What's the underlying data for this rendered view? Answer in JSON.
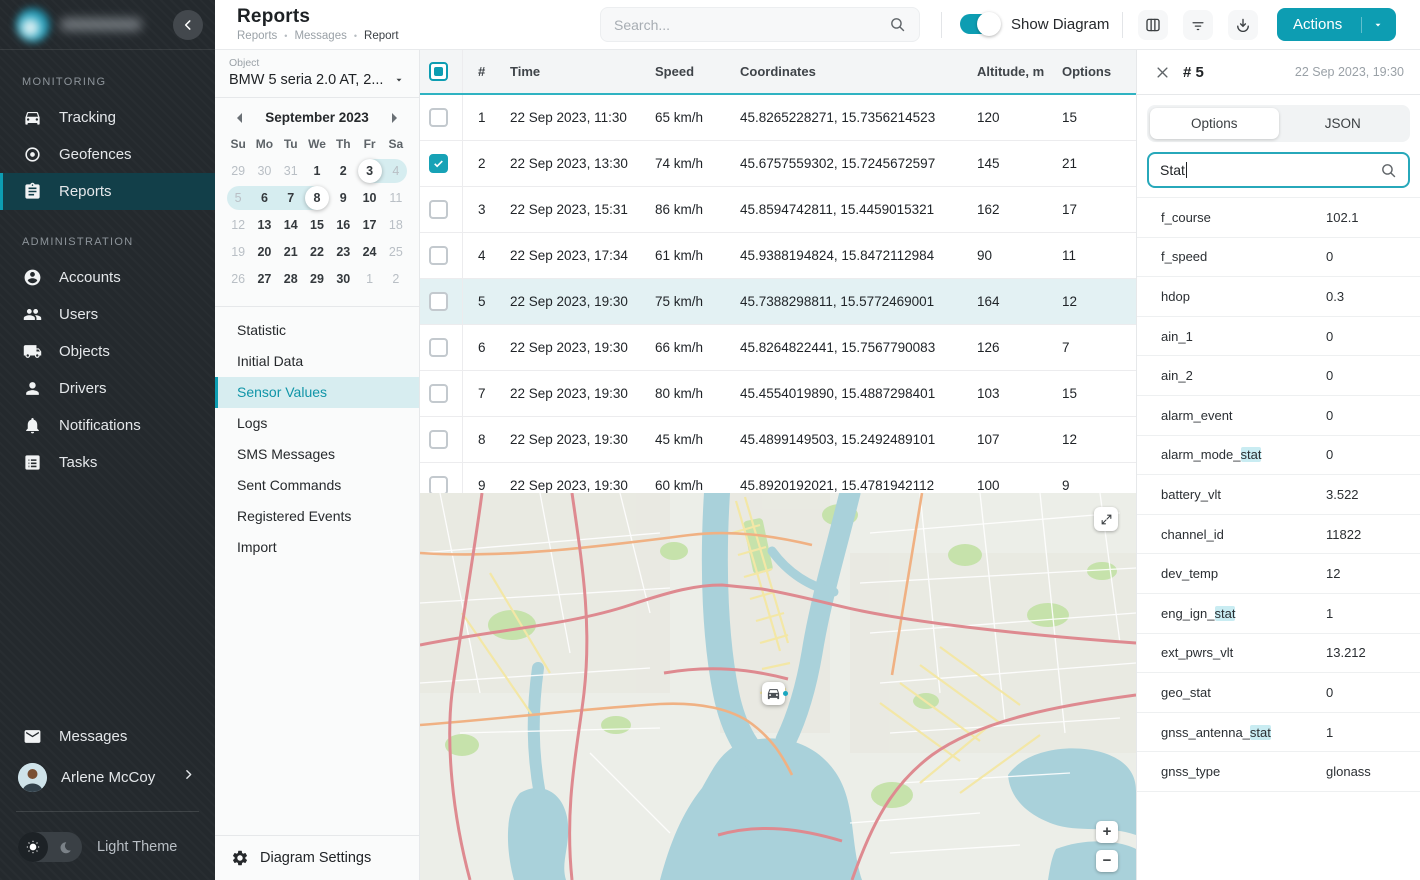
{
  "theme": {
    "accent": "#0d9db2",
    "accent_dark_bg": "#123f49",
    "selection_light": "#d6edf0",
    "row_highlight": "#e3f1f3",
    "match_highlight": "#c9ecf2"
  },
  "sidebar": {
    "sections": [
      {
        "label": "MONITORING",
        "items": [
          {
            "label": "Tracking",
            "icon": "car",
            "active": false
          },
          {
            "label": "Geofences",
            "icon": "geofence",
            "active": false
          },
          {
            "label": "Reports",
            "icon": "report",
            "active": true
          }
        ]
      },
      {
        "label": "ADMINISTRATION",
        "items": [
          {
            "label": "Accounts",
            "icon": "account",
            "active": false
          },
          {
            "label": "Users",
            "icon": "users",
            "active": false
          },
          {
            "label": "Objects",
            "icon": "truck",
            "active": false
          },
          {
            "label": "Drivers",
            "icon": "driver",
            "active": false
          },
          {
            "label": "Notifications",
            "icon": "bell",
            "active": false
          },
          {
            "label": "Tasks",
            "icon": "tasks",
            "active": false
          }
        ]
      }
    ],
    "footer": {
      "messages_label": "Messages",
      "user_name": "Arlene McCoy",
      "theme_label": "Light Theme"
    }
  },
  "header": {
    "title": "Reports",
    "breadcrumbs": [
      "Reports",
      "Messages",
      "Report"
    ],
    "search_placeholder": "Search...",
    "show_diagram_label": "Show Diagram",
    "show_diagram_on": true,
    "actions_label": "Actions"
  },
  "reports_panel": {
    "object_label": "Object",
    "object_value": "BMW 5 seria 2.0 AT, 2...",
    "calendar": {
      "month": "September 2023",
      "weekdays": [
        "Su",
        "Mo",
        "Tu",
        "We",
        "Th",
        "Fr",
        "Sa"
      ],
      "days": [
        {
          "d": 29,
          "muted": true
        },
        {
          "d": 30,
          "muted": true
        },
        {
          "d": 31,
          "muted": true
        },
        {
          "d": 1
        },
        {
          "d": 2
        },
        {
          "d": 3,
          "endpoint": true,
          "inRange": true,
          "roundL": true
        },
        {
          "d": 4,
          "muted": true,
          "inRange": true,
          "roundR": true
        },
        {
          "d": 5,
          "muted": true,
          "inRange": true,
          "roundL": true
        },
        {
          "d": 6,
          "inRange": true
        },
        {
          "d": 7,
          "inRange": true
        },
        {
          "d": 8,
          "endpoint": true,
          "inRange": true,
          "roundR": true
        },
        {
          "d": 9
        },
        {
          "d": 10
        },
        {
          "d": 11,
          "muted": true
        },
        {
          "d": 12,
          "muted": true
        },
        {
          "d": 13
        },
        {
          "d": 14
        },
        {
          "d": 15
        },
        {
          "d": 16
        },
        {
          "d": 17
        },
        {
          "d": 18,
          "muted": true
        },
        {
          "d": 19,
          "muted": true
        },
        {
          "d": 20
        },
        {
          "d": 21
        },
        {
          "d": 22
        },
        {
          "d": 23
        },
        {
          "d": 24
        },
        {
          "d": 25,
          "muted": true
        },
        {
          "d": 26,
          "muted": true
        },
        {
          "d": 27
        },
        {
          "d": 28
        },
        {
          "d": 29
        },
        {
          "d": 30
        },
        {
          "d": 1,
          "muted": true
        },
        {
          "d": 2,
          "muted": true
        }
      ]
    },
    "report_types": [
      "Statistic",
      "Initial Data",
      "Sensor Values",
      "Logs",
      "SMS Messages",
      "Sent Commands",
      "Registered Events",
      "Import"
    ],
    "active_report": "Sensor Values",
    "diagram_settings_label": "Diagram Settings"
  },
  "table": {
    "columns": [
      "#",
      "Time",
      "Speed",
      "Coordinates",
      "Altitude, m",
      "Options"
    ],
    "rows": [
      {
        "num": 1,
        "time": "22 Sep 2023, 11:30",
        "speed": "65 km/h",
        "coordinates": "45.8265228271, 15.7356214523",
        "altitude": "120",
        "options": "15",
        "checked": false,
        "highlighted": false
      },
      {
        "num": 2,
        "time": "22 Sep 2023, 13:30",
        "speed": "74 km/h",
        "coordinates": "45.6757559302, 15.7245672597",
        "altitude": "145",
        "options": "21",
        "checked": true,
        "highlighted": false
      },
      {
        "num": 3,
        "time": "22 Sep 2023, 15:31",
        "speed": "86 km/h",
        "coordinates": "45.8594742811, 15.4459015321",
        "altitude": "162",
        "options": "17",
        "checked": false,
        "highlighted": false
      },
      {
        "num": 4,
        "time": "22 Sep 2023, 17:34",
        "speed": "61 km/h",
        "coordinates": "45.9388194824, 15.8472112984",
        "altitude": "90",
        "options": "11",
        "checked": false,
        "highlighted": false
      },
      {
        "num": 5,
        "time": "22 Sep 2023, 19:30",
        "speed": "75 km/h",
        "coordinates": "45.7388298811, 15.5772469001",
        "altitude": "164",
        "options": "12",
        "checked": false,
        "highlighted": true
      },
      {
        "num": 6,
        "time": "22 Sep 2023, 19:30",
        "speed": "66 km/h",
        "coordinates": "45.8264822441, 15.7567790083",
        "altitude": "126",
        "options": "7",
        "checked": false,
        "highlighted": false
      },
      {
        "num": 7,
        "time": "22 Sep 2023, 19:30",
        "speed": "80 km/h",
        "coordinates": "45.4554019890, 15.4887298401",
        "altitude": "103",
        "options": "15",
        "checked": false,
        "highlighted": false
      },
      {
        "num": 8,
        "time": "22 Sep 2023, 19:30",
        "speed": "45 km/h",
        "coordinates": "45.4899149503, 15.2492489101",
        "altitude": "107",
        "options": "12",
        "checked": false,
        "highlighted": false
      },
      {
        "num": 9,
        "time": "22 Sep 2023, 19:30",
        "speed": "60 km/h",
        "coordinates": "45.8920192021, 15.4781942112",
        "altitude": "100",
        "options": "9",
        "checked": false,
        "highlighted": false
      }
    ]
  },
  "map": {
    "zoom_in_label": "+",
    "zoom_out_label": "−"
  },
  "details": {
    "title": "# 5",
    "timestamp": "22 Sep 2023, 19:30",
    "tabs": [
      "Options",
      "JSON"
    ],
    "active_tab": "Options",
    "search_value": "Stat",
    "params": [
      {
        "key": "f_course",
        "value": "102.1"
      },
      {
        "key": "f_speed",
        "value": "0"
      },
      {
        "key": "hdop",
        "value": "0.3"
      },
      {
        "key": "ain_1",
        "value": "0"
      },
      {
        "key": "ain_2",
        "value": "0"
      },
      {
        "key": "alarm_event",
        "value": "0"
      },
      {
        "key": "alarm_mode_stat",
        "value": "0",
        "hl": "stat"
      },
      {
        "key": "battery_vlt",
        "value": "3.522"
      },
      {
        "key": "channel_id",
        "value": "11822"
      },
      {
        "key": "dev_temp",
        "value": "12"
      },
      {
        "key": "eng_ign_stat",
        "value": "1",
        "hl": "stat"
      },
      {
        "key": "ext_pwrs_vlt",
        "value": "13.212"
      },
      {
        "key": "geo_stat",
        "value": "0"
      },
      {
        "key": "gnss_antenna_stat",
        "value": "1",
        "hl": "stat"
      },
      {
        "key": "gnss_type",
        "value": "glonass"
      }
    ]
  }
}
